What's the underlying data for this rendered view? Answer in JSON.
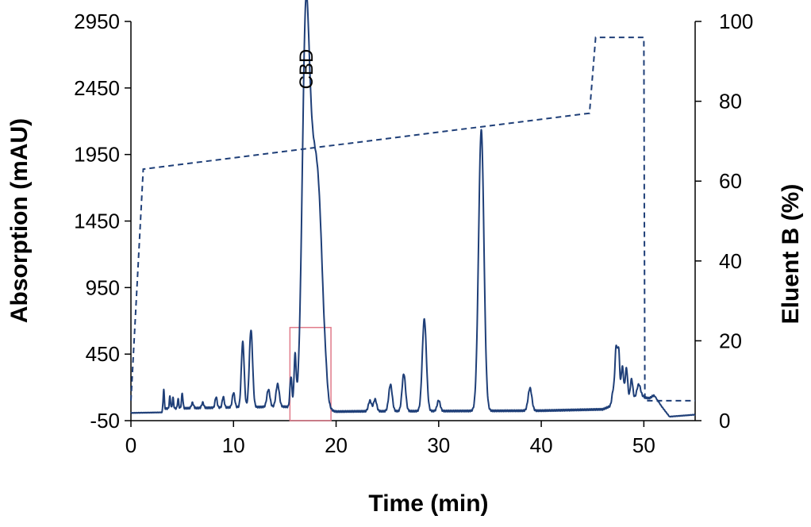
{
  "chart_data": {
    "type": "line",
    "xlabel": "Time (min)",
    "ylabel_left": "Absorption (mAU)",
    "ylabel_right": "Eluent B (%)",
    "xlim": [
      0,
      55
    ],
    "ylim_left": [
      -50,
      2950
    ],
    "ylim_right": [
      0,
      100
    ],
    "x_ticks": [
      0,
      10,
      20,
      30,
      40,
      50
    ],
    "y_left_ticks": [
      -50,
      450,
      950,
      1450,
      1950,
      2450,
      2950
    ],
    "y_right_ticks": [
      0,
      20,
      40,
      60,
      80,
      100
    ],
    "grid": false,
    "colors": {
      "chromatogram": "#1f3f78",
      "gradient": "#1f3f78",
      "fraction_box": "#e07a8a"
    },
    "annotations": [
      {
        "text": "CBD",
        "x": 17.0,
        "y": 2500,
        "orientation": "vertical"
      }
    ],
    "fraction_window": {
      "x": [
        15.5,
        19.5
      ],
      "y": [
        -50,
        650
      ]
    },
    "series": [
      {
        "id": "absorption",
        "axis": "left",
        "style": "solid",
        "baseline": [
          [
            0,
            8
          ],
          [
            3,
            12
          ],
          [
            3.1,
            40
          ],
          [
            10,
            50
          ],
          [
            15,
            55
          ],
          [
            20,
            18
          ],
          [
            22,
            20
          ],
          [
            30,
            22
          ],
          [
            40,
            25
          ],
          [
            46,
            35
          ],
          [
            48,
            100
          ],
          [
            50,
            130
          ],
          [
            51.5,
            80
          ],
          [
            52.5,
            -20
          ],
          [
            55,
            -5
          ]
        ],
        "peaks": [
          [
            3.2,
            150,
            0.05
          ],
          [
            3.8,
            90,
            0.06
          ],
          [
            4.1,
            80,
            0.06
          ],
          [
            4.6,
            70,
            0.06
          ],
          [
            5.0,
            110,
            0.07
          ],
          [
            6.0,
            40,
            0.1
          ],
          [
            7.0,
            40,
            0.1
          ],
          [
            8.3,
            80,
            0.1
          ],
          [
            9.0,
            80,
            0.1
          ],
          [
            10.0,
            110,
            0.12
          ],
          [
            10.9,
            490,
            0.14
          ],
          [
            11.7,
            580,
            0.16
          ],
          [
            13.4,
            130,
            0.15
          ],
          [
            14.3,
            170,
            0.16
          ],
          [
            15.6,
            230,
            0.1
          ],
          [
            16.0,
            380,
            0.1
          ],
          [
            17.0,
            2240,
            0.33
          ],
          [
            17.5,
            1350,
            0.45
          ],
          [
            18.2,
            1200,
            0.45
          ],
          [
            18.5,
            300,
            0.35
          ],
          [
            19.0,
            60,
            0.15
          ],
          [
            23.3,
            80,
            0.15
          ],
          [
            23.8,
            90,
            0.15
          ],
          [
            25.3,
            200,
            0.17
          ],
          [
            26.6,
            280,
            0.17
          ],
          [
            28.6,
            690,
            0.2
          ],
          [
            30.0,
            80,
            0.15
          ],
          [
            34.15,
            2110,
            0.26
          ],
          [
            38.9,
            170,
            0.18
          ],
          [
            47.0,
            100,
            0.12
          ],
          [
            47.3,
            420,
            0.12
          ],
          [
            47.55,
            360,
            0.1
          ],
          [
            47.9,
            260,
            0.12
          ],
          [
            48.3,
            240,
            0.12
          ],
          [
            48.8,
            150,
            0.12
          ],
          [
            49.5,
            100,
            0.18
          ],
          [
            51.0,
            40,
            0.25
          ]
        ]
      },
      {
        "id": "eluent_b",
        "axis": "right",
        "style": "dashed",
        "points": [
          [
            0,
            5
          ],
          [
            1.2,
            63
          ],
          [
            44.7,
            77
          ],
          [
            45.3,
            96
          ],
          [
            50,
            96
          ],
          [
            50.1,
            5
          ],
          [
            55,
            5
          ]
        ]
      }
    ]
  }
}
